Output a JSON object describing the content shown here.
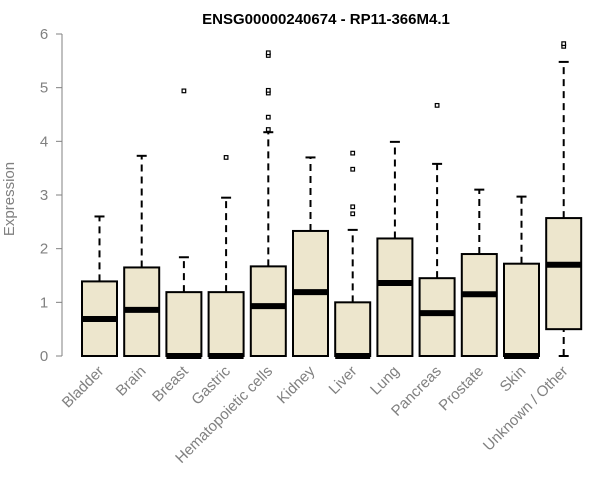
{
  "chart_data": {
    "type": "boxplot",
    "title": "ENSG00000240674 - RP11-366M4.1",
    "xlabel": "",
    "ylabel": "Expression",
    "ylim": [
      0,
      6
    ],
    "yticks": [
      "0",
      "1",
      "2",
      "3",
      "4",
      "5",
      "6"
    ],
    "grid": false,
    "legend": "none",
    "colors": {
      "box_fill": "#ede6cd",
      "stroke": "#000000",
      "axis_text": "#808080"
    },
    "categories": [
      "Bladder",
      "Brain",
      "Breast",
      "Gastric",
      "Hematopoietic cells",
      "Kidney",
      "Liver",
      "Lung",
      "Pancreas",
      "Prostate",
      "Skin",
      "Unknown / Other"
    ],
    "boxes": [
      {
        "category": "Bladder",
        "min": 0,
        "q1": 0,
        "median": 0.69,
        "q3": 1.39,
        "max": 2.6,
        "outliers": []
      },
      {
        "category": "Brain",
        "min": 0,
        "q1": 0,
        "median": 0.86,
        "q3": 1.65,
        "max": 3.73,
        "outliers": []
      },
      {
        "category": "Breast",
        "min": 0,
        "q1": 0,
        "median": 0,
        "q3": 1.19,
        "max": 1.84,
        "outliers": [
          4.94
        ]
      },
      {
        "category": "Gastric",
        "min": 0,
        "q1": 0,
        "median": 0,
        "q3": 1.19,
        "max": 2.95,
        "outliers": [
          3.7
        ]
      },
      {
        "category": "Hematopoietic cells",
        "min": 0,
        "q1": 0,
        "median": 0.93,
        "q3": 1.67,
        "max": 4.17,
        "outliers": [
          4.22,
          4.45,
          4.9,
          4.95,
          5.6,
          5.65
        ]
      },
      {
        "category": "Kidney",
        "min": 0,
        "q1": 0,
        "median": 1.19,
        "q3": 2.33,
        "max": 3.7,
        "outliers": []
      },
      {
        "category": "Liver",
        "min": 0,
        "q1": 0,
        "median": 0,
        "q3": 1.0,
        "max": 2.35,
        "outliers": [
          2.65,
          2.78,
          3.48,
          3.78
        ]
      },
      {
        "category": "Lung",
        "min": 0,
        "q1": 0,
        "median": 1.36,
        "q3": 2.19,
        "max": 3.99,
        "outliers": []
      },
      {
        "category": "Pancreas",
        "min": 0,
        "q1": 0,
        "median": 0.8,
        "q3": 1.45,
        "max": 3.58,
        "outliers": [
          4.67
        ]
      },
      {
        "category": "Prostate",
        "min": 0,
        "q1": 0,
        "median": 1.15,
        "q3": 1.9,
        "max": 3.1,
        "outliers": []
      },
      {
        "category": "Skin",
        "min": 0,
        "q1": 0,
        "median": 0,
        "q3": 1.72,
        "max": 2.97,
        "outliers": []
      },
      {
        "category": "Unknown / Other",
        "min": 0,
        "q1": 0.5,
        "median": 1.7,
        "q3": 2.57,
        "max": 5.48,
        "outliers": [
          5.77,
          5.82
        ]
      }
    ]
  }
}
